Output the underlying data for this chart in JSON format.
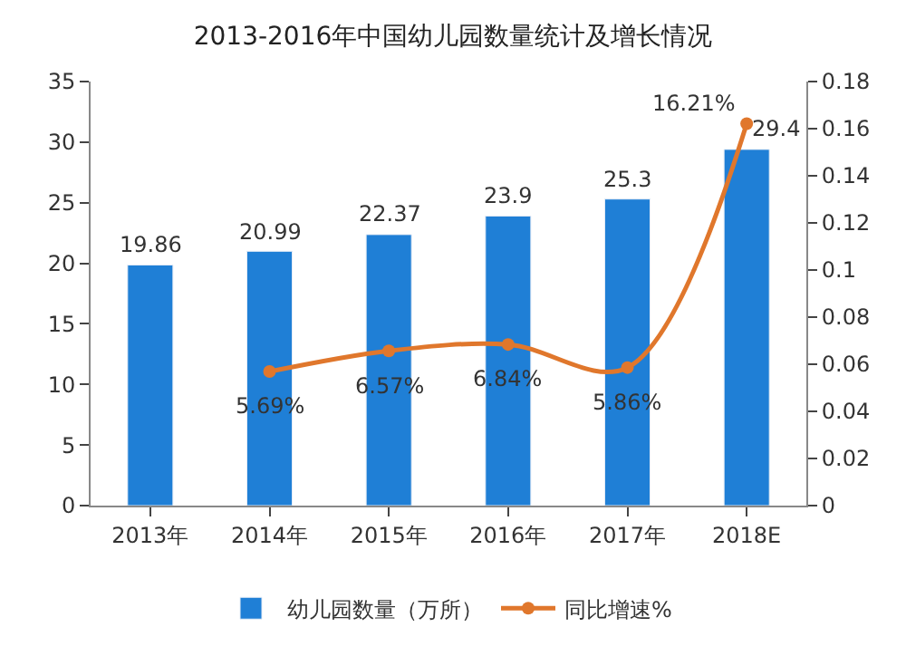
{
  "chart_data": {
    "type": "bar",
    "title": "2013-2016年中国幼儿园数量统计及增长情况",
    "categories": [
      "2013年",
      "2014年",
      "2015年",
      "2016年",
      "2017年",
      "2018E"
    ],
    "series": [
      {
        "name": "幼儿园数量（万所）",
        "color": "#1f7fd6",
        "values": [
          19.86,
          20.99,
          22.37,
          23.9,
          25.3,
          29.4
        ],
        "data_labels": true
      },
      {
        "name": "同比增速%",
        "type": "line",
        "axis": "y2",
        "color": "#e0772c",
        "marker": "circle",
        "values": [
          null,
          0.0569,
          0.0657,
          0.0684,
          0.0586,
          0.1621
        ],
        "value_labels": [
          null,
          "5.69%",
          "6.57%",
          "6.84%",
          "5.86%",
          "16.21%"
        ]
      }
    ],
    "ylim": [
      0,
      35
    ],
    "yticks": [
      0,
      5,
      10,
      15,
      20,
      25,
      30,
      35
    ],
    "y2lim": [
      0,
      0.18
    ],
    "y2ticks": [
      0,
      {
        "value": 0.02,
        "label": "0.02"
      },
      {
        "value": 0.04,
        "label": "0.04"
      },
      {
        "value": 0.06,
        "label": "0.06"
      },
      {
        "value": 0.08,
        "label": "0.08"
      },
      {
        "value": 0.1,
        "label": "0.1"
      },
      {
        "value": 0.12,
        "label": "0.12"
      },
      {
        "value": 0.14,
        "label": "0.14"
      },
      {
        "value": 0.16,
        "label": "0.16"
      },
      {
        "value": 0.18,
        "label": "0.18"
      }
    ],
    "legend": "bottom"
  }
}
